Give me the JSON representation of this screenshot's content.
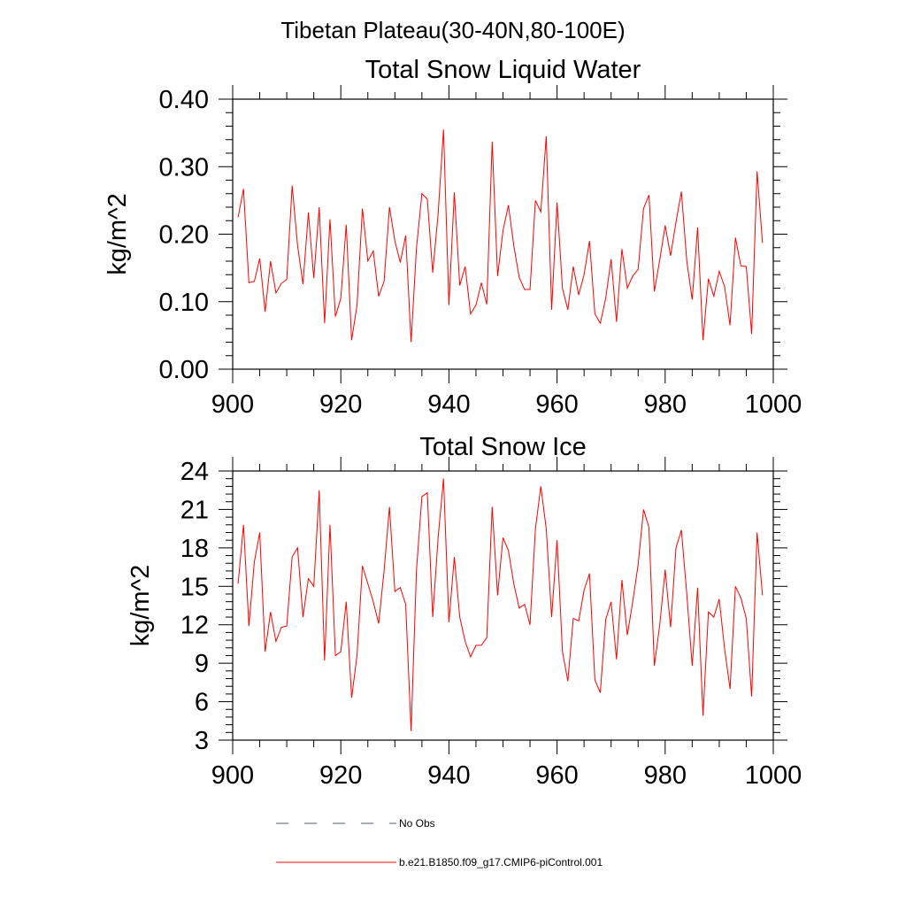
{
  "figure": {
    "suptitle": "Tibetan Plateau(30-40N,80-100E)",
    "line_color": "#ff0000",
    "legend": [
      {
        "label": "No Obs",
        "style": "dashed",
        "color": "#4a5a8c"
      },
      {
        "label": "b.e21.B1850.f09_g17.CMIP6-piControl.001",
        "style": "solid",
        "color": "#ff0000"
      }
    ]
  },
  "chart_data": [
    {
      "type": "line",
      "title": "Total Snow Liquid Water",
      "xlabel": "",
      "ylabel": "kg/m^2",
      "xlim": [
        900,
        1000
      ],
      "ylim": [
        0,
        0.4
      ],
      "xticks": [
        900,
        920,
        940,
        960,
        980,
        1000
      ],
      "xtick_labels": [
        "900",
        "920",
        "940",
        "960",
        "980",
        "1000"
      ],
      "yticks": [
        0,
        0.1,
        0.2,
        0.3,
        0.4
      ],
      "ytick_labels": [
        "0.00",
        "0.10",
        "0.20",
        "0.30",
        "0.40"
      ],
      "series": [
        {
          "name": "b.e21.B1850.f09_g17.CMIP6-piControl.001",
          "x_start": 901,
          "values": [
            0.225,
            0.267,
            0.128,
            0.13,
            0.164,
            0.085,
            0.16,
            0.113,
            0.127,
            0.133,
            0.272,
            0.183,
            0.126,
            0.232,
            0.135,
            0.24,
            0.068,
            0.222,
            0.078,
            0.105,
            0.214,
            0.043,
            0.095,
            0.238,
            0.16,
            0.175,
            0.108,
            0.13,
            0.24,
            0.19,
            0.158,
            0.198,
            0.04,
            0.18,
            0.26,
            0.252,
            0.143,
            0.23,
            0.355,
            0.095,
            0.262,
            0.124,
            0.152,
            0.082,
            0.095,
            0.128,
            0.096,
            0.337,
            0.138,
            0.205,
            0.243,
            0.183,
            0.136,
            0.118,
            0.118,
            0.25,
            0.233,
            0.345,
            0.088,
            0.247,
            0.12,
            0.088,
            0.152,
            0.11,
            0.14,
            0.19,
            0.082,
            0.068,
            0.105,
            0.163,
            0.07,
            0.178,
            0.12,
            0.138,
            0.148,
            0.238,
            0.258,
            0.115,
            0.162,
            0.213,
            0.168,
            0.218,
            0.263,
            0.16,
            0.103,
            0.21,
            0.043,
            0.134,
            0.108,
            0.145,
            0.122,
            0.065,
            0.195,
            0.153,
            0.152,
            0.052,
            0.293,
            0.187
          ]
        }
      ]
    },
    {
      "type": "line",
      "title": "Total Snow Ice",
      "xlabel": "",
      "ylabel": "kg/m^2",
      "xlim": [
        900,
        1000
      ],
      "ylim": [
        3,
        24
      ],
      "xticks": [
        900,
        920,
        940,
        960,
        980,
        1000
      ],
      "xtick_labels": [
        "900",
        "920",
        "940",
        "960",
        "980",
        "1000"
      ],
      "yticks": [
        3,
        6,
        9,
        12,
        15,
        18,
        21,
        24
      ],
      "ytick_labels": [
        "3",
        "6",
        "9",
        "12",
        "15",
        "18",
        "21",
        "24"
      ],
      "series": [
        {
          "name": "b.e21.B1850.f09_g17.CMIP6-piControl.001",
          "x_start": 901,
          "values": [
            15.2,
            19.8,
            11.9,
            16.9,
            19.2,
            9.9,
            13.0,
            10.7,
            11.8,
            11.9,
            17.3,
            18.0,
            12.6,
            15.6,
            15.0,
            22.5,
            9.2,
            19.8,
            9.6,
            9.9,
            13.8,
            6.3,
            9.6,
            16.6,
            15.2,
            13.8,
            12.1,
            16.2,
            21.2,
            14.6,
            14.9,
            13.6,
            3.7,
            16.3,
            22.0,
            22.3,
            12.6,
            18.8,
            23.4,
            12.2,
            17.3,
            12.6,
            10.7,
            9.5,
            10.4,
            10.4,
            11.0,
            21.2,
            14.3,
            18.8,
            17.8,
            15.2,
            13.3,
            13.6,
            12.0,
            19.5,
            22.8,
            19.5,
            12.6,
            18.6,
            9.9,
            7.6,
            12.5,
            12.3,
            14.7,
            16.0,
            7.7,
            6.7,
            12.4,
            13.8,
            9.3,
            15.5,
            11.2,
            13.8,
            16.7,
            21.0,
            19.6,
            8.8,
            12.0,
            16.3,
            11.8,
            18.0,
            19.4,
            14.4,
            8.8,
            14.9,
            4.9,
            13.0,
            12.6,
            14.0,
            10.1,
            7.0,
            15.0,
            14.1,
            12.5,
            6.4,
            19.2,
            14.3
          ]
        }
      ]
    }
  ]
}
